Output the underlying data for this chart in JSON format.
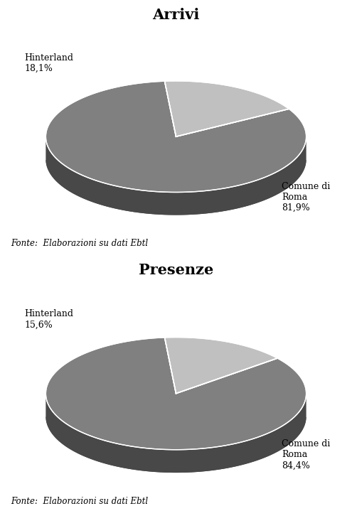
{
  "chart1": {
    "title": "Arrivi",
    "slices": [
      81.9,
      18.1
    ],
    "labels": [
      "Comune di\nRoma\n81,9%",
      "Hinterland\n18,1%"
    ],
    "colors_top": [
      "#808080",
      "#c0c0c0"
    ],
    "colors_side": [
      "#484848",
      "#909090"
    ],
    "source": "Fonte:  Elaborazioni su dati Ebtl"
  },
  "chart2": {
    "title": "Presenze",
    "slices": [
      84.4,
      15.6
    ],
    "labels": [
      "Comune di\nRoma\n84,4%",
      "Hinterland\n15,6%"
    ],
    "colors_top": [
      "#808080",
      "#c0c0c0"
    ],
    "colors_side": [
      "#484848",
      "#909090"
    ],
    "source": "Fonte:  Elaborazioni su dati Ebtl"
  },
  "background_color": "#ffffff",
  "title_fontsize": 15,
  "label_fontsize": 9,
  "source_fontsize": 8.5
}
